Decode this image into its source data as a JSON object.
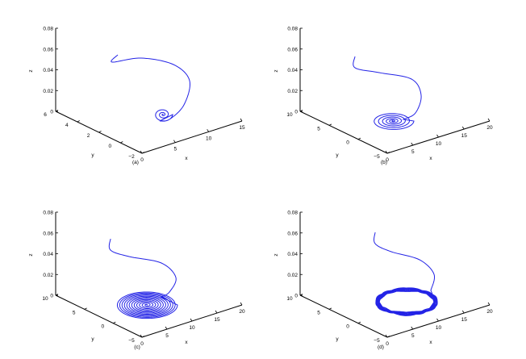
{
  "chart_data": [
    {
      "type": "line3d",
      "caption": "(a)",
      "xlabel": "x",
      "ylabel": "y",
      "zlabel": "z",
      "xticks": [
        "0",
        "5",
        "10",
        "15"
      ],
      "yticks": [
        "−2",
        "0",
        "2",
        "4",
        "6"
      ],
      "zticks": [
        "0",
        "0.02",
        "0.04",
        "0.06",
        "0.08"
      ],
      "xlim": [
        0,
        15
      ],
      "ylim": [
        -2,
        6
      ],
      "zlim": [
        0,
        0.08
      ],
      "series": [
        {
          "description": "trajectory spiralling inward to a stable focus",
          "color": "#2323e6"
        }
      ]
    },
    {
      "type": "line3d",
      "caption": "(b)",
      "xlabel": "x",
      "ylabel": "y",
      "zlabel": "z",
      "xticks": [
        "0",
        "5",
        "10",
        "15",
        "20"
      ],
      "yticks": [
        "−5",
        "0",
        "5",
        "10"
      ],
      "zticks": [
        "0",
        "0.02",
        "0.04",
        "0.06",
        "0.08"
      ],
      "xlim": [
        0,
        20
      ],
      "ylim": [
        -5,
        10
      ],
      "zlim": [
        0,
        0.08
      ],
      "series": [
        {
          "description": "trajectory spiralling inward, more turns",
          "color": "#2323e6"
        }
      ]
    },
    {
      "type": "line3d",
      "caption": "(c)",
      "xlabel": "x",
      "ylabel": "y",
      "zlabel": "z",
      "xticks": [
        "0",
        "5",
        "10",
        "15",
        "20"
      ],
      "yticks": [
        "−5",
        "0",
        "5",
        "10"
      ],
      "zticks": [
        "0",
        "0.02",
        "0.04",
        "0.06",
        "0.08"
      ],
      "xlim": [
        0,
        20
      ],
      "ylim": [
        -5,
        10
      ],
      "zlim": [
        0,
        0.08
      ],
      "series": [
        {
          "description": "slowly decaying spiral with many turns",
          "color": "#2323e6"
        }
      ]
    },
    {
      "type": "line3d",
      "caption": "(d)",
      "xlabel": "x",
      "ylabel": "y",
      "zlabel": "z",
      "xticks": [
        "0",
        "5",
        "10",
        "15",
        "20"
      ],
      "yticks": [
        "−5",
        "0",
        "5",
        "10"
      ],
      "zticks": [
        "0",
        "0.02",
        "0.04",
        "0.06",
        "0.08"
      ],
      "xlim": [
        0,
        20
      ],
      "ylim": [
        -5,
        10
      ],
      "zlim": [
        0,
        0.08
      ],
      "series": [
        {
          "description": "trajectory converging to a limit cycle",
          "color": "#2323e6"
        }
      ]
    }
  ]
}
